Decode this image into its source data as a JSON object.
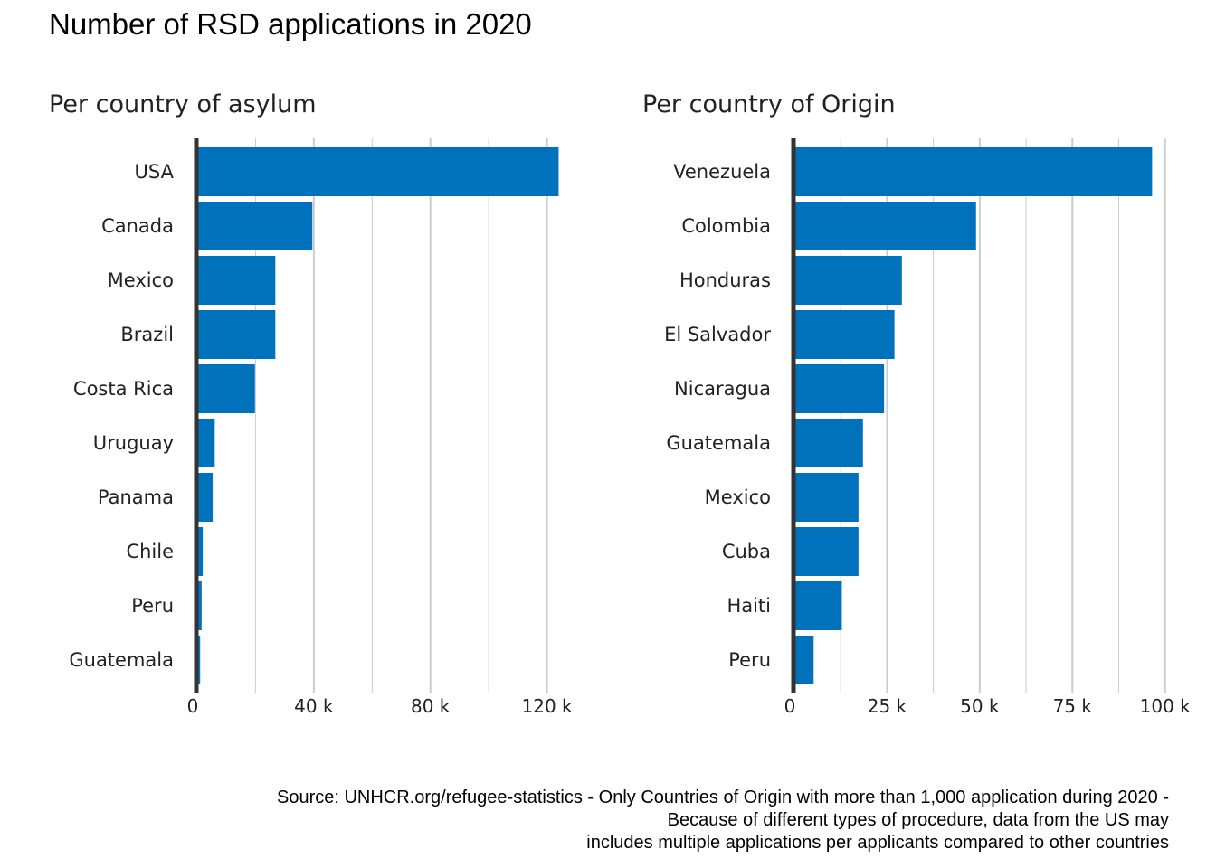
{
  "title": "Number of RSD applications in 2020",
  "caption": [
    "Source: UNHCR.org/refugee-statistics - Only Countries of Origin with more than 1,000 application during 2020 -",
    "Because of different types of procedure, data from the US may",
    "includes multiple applications per applicants compared to other countries"
  ],
  "colors": {
    "bar": "#0072bc",
    "axis": "#333333",
    "grid": "#cccccc"
  },
  "chart_data": [
    {
      "type": "bar",
      "orientation": "horizontal",
      "subtitle": "Per country of asylum",
      "categories": [
        "USA",
        "Canada",
        "Mexico",
        "Brazil",
        "Costa Rica",
        "Uruguay",
        "Panama",
        "Chile",
        "Peru",
        "Guatemala"
      ],
      "values": [
        124000,
        39500,
        26800,
        26800,
        19800,
        6000,
        5300,
        1900,
        1500,
        1000
      ],
      "xlim": [
        0,
        131000
      ],
      "x_ticks": [
        0,
        40000,
        80000,
        120000
      ],
      "x_tick_labels": [
        "0",
        "40 k",
        "80 k",
        "120 k"
      ],
      "x_minor_grid": [
        20000,
        60000,
        100000
      ],
      "grid": true,
      "xlabel": "",
      "ylabel": ""
    },
    {
      "type": "bar",
      "orientation": "horizontal",
      "subtitle": "Per country of Origin",
      "categories": [
        "Venezuela",
        "Colombia",
        "Honduras",
        "El Salvador",
        "Nicaragua",
        "Guatemala",
        "Mexico",
        "Cuba",
        "Haiti",
        "Peru"
      ],
      "values": [
        96500,
        49000,
        29000,
        27000,
        24200,
        18500,
        17300,
        17300,
        12800,
        5200
      ],
      "xlim": [
        0,
        103000
      ],
      "x_ticks": [
        0,
        25000,
        50000,
        75000,
        100000
      ],
      "x_tick_labels": [
        "0",
        "25 k",
        "50 k",
        "75 k",
        "100 k"
      ],
      "x_minor_grid": [
        12500,
        37500,
        62500,
        87500
      ],
      "grid": true,
      "xlabel": "",
      "ylabel": ""
    }
  ]
}
